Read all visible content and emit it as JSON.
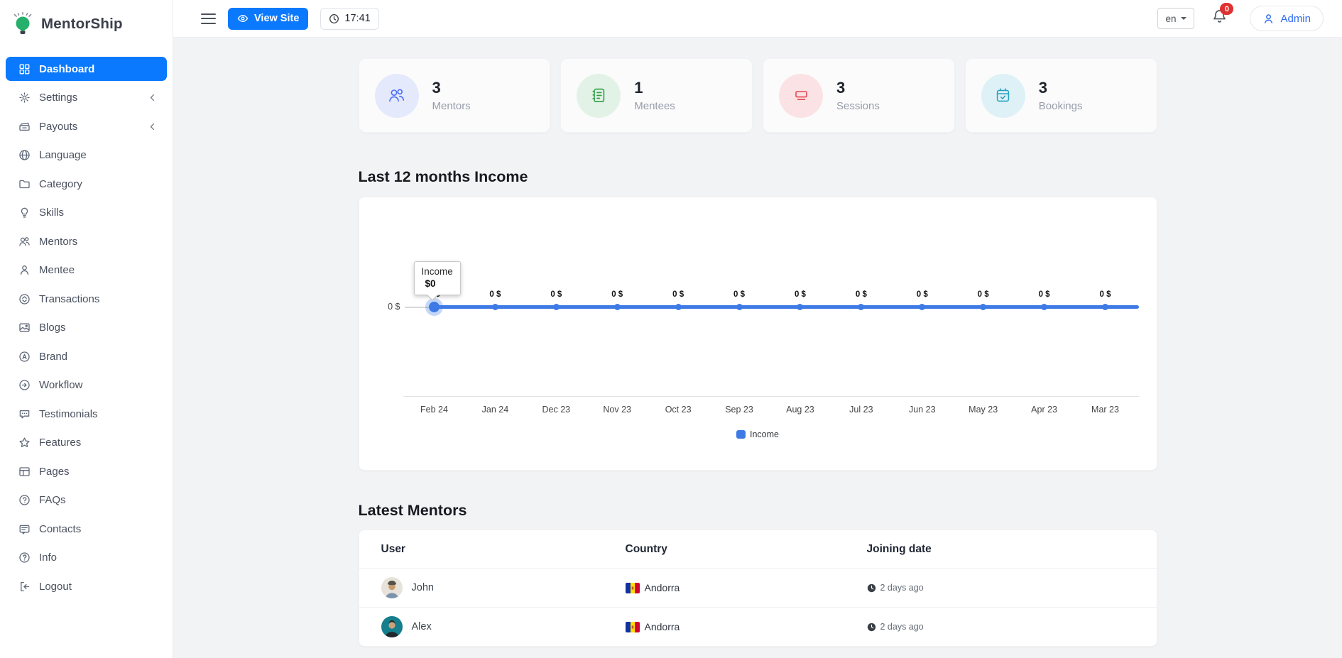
{
  "brand": {
    "name": "MentorShip",
    "logo_icon": "lightbulb-logo"
  },
  "topbar": {
    "view_site_label": "View Site",
    "time": "17:41",
    "language": "en",
    "notification_badge": "0",
    "admin_label": "Admin"
  },
  "sidebar": {
    "items": [
      {
        "label": "Dashboard",
        "icon": "dashboard-grid-icon",
        "active": true
      },
      {
        "label": "Settings",
        "icon": "gear-icon",
        "chevron": true
      },
      {
        "label": "Payouts",
        "icon": "cash-stack-icon",
        "chevron": true
      },
      {
        "label": "Language",
        "icon": "globe-icon"
      },
      {
        "label": "Category",
        "icon": "folder-icon"
      },
      {
        "label": "Skills",
        "icon": "lightbulb-icon"
      },
      {
        "label": "Mentors",
        "icon": "users-icon"
      },
      {
        "label": "Mentee",
        "icon": "user-icon"
      },
      {
        "label": "Transactions",
        "icon": "transactions-icon"
      },
      {
        "label": "Blogs",
        "icon": "image-icon"
      },
      {
        "label": "Brand",
        "icon": "brand-circle-icon"
      },
      {
        "label": "Workflow",
        "icon": "arrow-circle-icon"
      },
      {
        "label": "Testimonials",
        "icon": "chat-bubble-icon"
      },
      {
        "label": "Features",
        "icon": "star-icon"
      },
      {
        "label": "Pages",
        "icon": "layout-icon"
      },
      {
        "label": "FAQs",
        "icon": "question-circle-icon"
      },
      {
        "label": "Contacts",
        "icon": "message-lines-icon"
      },
      {
        "label": "Info",
        "icon": "info-circle-icon"
      },
      {
        "label": "Logout",
        "icon": "logout-icon"
      }
    ]
  },
  "stats": [
    {
      "value": "3",
      "label": "Mentors",
      "icon": "stat-mentors-icon",
      "icon_color": "#4c6ef5",
      "circle_bg": "#e4e9fc"
    },
    {
      "value": "1",
      "label": "Mentees",
      "icon": "stat-mentees-icon",
      "icon_color": "#2f9e44",
      "circle_bg": "#e3f2e7"
    },
    {
      "value": "3",
      "label": "Sessions",
      "icon": "stat-sessions-icon",
      "icon_color": "#e5484d",
      "circle_bg": "#fbe2e5"
    },
    {
      "value": "3",
      "label": "Bookings",
      "icon": "stat-bookings-icon",
      "icon_color": "#2ba2c2",
      "circle_bg": "#def1f6"
    }
  ],
  "sections": {
    "income_title": "Last 12 months Income",
    "mentors_title": "Latest Mentors"
  },
  "chart_data": {
    "type": "line",
    "title": "Last 12 months Income",
    "x_labels": [
      "Feb 24",
      "Jan 24",
      "Dec 23",
      "Nov 23",
      "Oct 23",
      "Sep 23",
      "Aug 23",
      "Jul 23",
      "Jun 23",
      "May 23",
      "Apr 23",
      "Mar 23"
    ],
    "series": [
      {
        "name": "Income",
        "color": "#3d7ae5",
        "values": [
          0,
          0,
          0,
          0,
          0,
          0,
          0,
          0,
          0,
          0,
          0,
          0
        ]
      }
    ],
    "point_label": "0 $",
    "y_ticks": [
      "0 $"
    ],
    "ylim": [
      0,
      1
    ],
    "grid": false,
    "legend": {
      "position": "bottom",
      "entries": [
        "Income"
      ]
    },
    "tooltip": {
      "series": "Income",
      "value": "$0",
      "point_index": 0
    }
  },
  "table": {
    "headers": [
      "User",
      "Country",
      "Joining date"
    ],
    "rows": [
      {
        "name": "John",
        "avatar": "john-avatar",
        "country": "Andorra",
        "flag": "andorra-flag",
        "joined": "2 days ago",
        "joined_icon": "clock-filled-icon"
      },
      {
        "name": "Alex",
        "avatar": "alex-avatar",
        "country": "Andorra",
        "flag": "andorra-flag",
        "joined": "2 days ago",
        "joined_icon": "clock-filled-icon"
      }
    ]
  }
}
